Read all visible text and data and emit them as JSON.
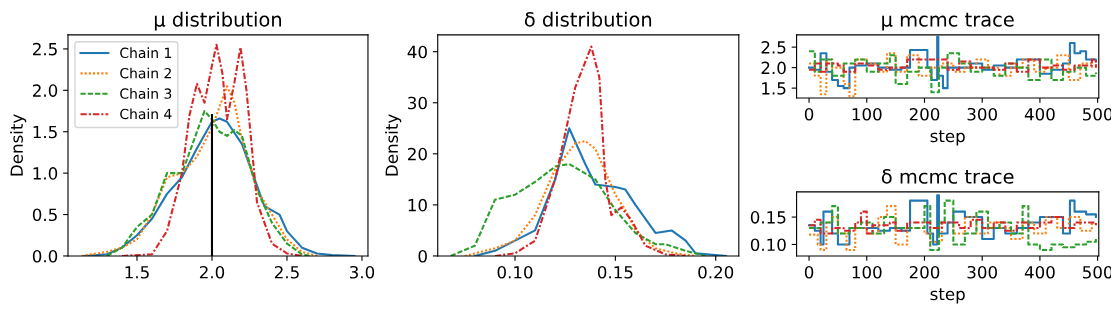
{
  "chart_data": [
    {
      "type": "line",
      "title": "μ distribution",
      "ylabel": "Density",
      "legend": "top left",
      "xlim": [
        1.04,
        3.04
      ],
      "ylim": [
        0,
        2.67
      ],
      "xticks": [
        1.5,
        {
          "value": 2,
          "label": "2.0"
        },
        2.5,
        {
          "value": 3,
          "label": "3.0"
        }
      ],
      "yticks": [
        {
          "value": 0,
          "label": "0.0"
        },
        0.5,
        {
          "value": 1,
          "label": "1.0"
        },
        1.5,
        {
          "value": 2,
          "label": "2.0"
        },
        2.5
      ],
      "series": [
        {
          "name": "Chain 1",
          "color": "#1f77b4",
          "line_style": "solid",
          "x": [
            1.15,
            1.3,
            1.4,
            1.5,
            1.6,
            1.7,
            1.8,
            1.9,
            2.0,
            2.05,
            2.1,
            2.2,
            2.3,
            2.35,
            2.4,
            2.45,
            2.5,
            2.6,
            2.7,
            2.8,
            2.95
          ],
          "values": [
            0,
            0.02,
            0.1,
            0.25,
            0.45,
            0.75,
            0.95,
            1.3,
            1.62,
            1.66,
            1.62,
            1.35,
            0.85,
            0.6,
            0.55,
            0.5,
            0.3,
            0.1,
            0.03,
            0.01,
            0
          ]
        },
        {
          "name": "Chain 2",
          "color": "#ff7f0e",
          "line_style": "dotted",
          "x": [
            1.13,
            1.3,
            1.4,
            1.5,
            1.6,
            1.7,
            1.8,
            1.9,
            2.0,
            2.05,
            2.1,
            2.15,
            2.2,
            2.3,
            2.4,
            2.5,
            2.6,
            2.7
          ],
          "values": [
            0,
            0.05,
            0.1,
            0.2,
            0.5,
            0.95,
            1.0,
            1.2,
            1.55,
            1.8,
            2.05,
            1.85,
            1.4,
            0.8,
            0.5,
            0.2,
            0.05,
            0
          ]
        },
        {
          "name": "Chain 3",
          "color": "#2ca02c",
          "line_style": "dashed",
          "x": [
            1.3,
            1.4,
            1.5,
            1.6,
            1.7,
            1.75,
            1.8,
            1.9,
            1.95,
            2.0,
            2.05,
            2.1,
            2.15,
            2.2,
            2.3,
            2.4,
            2.5,
            2.6,
            2.65
          ],
          "values": [
            0,
            0.1,
            0.35,
            0.5,
            1.0,
            1.0,
            1.0,
            1.5,
            1.75,
            1.65,
            1.5,
            1.45,
            1.52,
            1.45,
            0.8,
            0.4,
            0.15,
            0.02,
            0
          ]
        },
        {
          "name": "Chain 4",
          "color": "#d62728",
          "line_style": "dashdot",
          "x": [
            1.4,
            1.6,
            1.7,
            1.8,
            1.85,
            1.9,
            1.95,
            2.0,
            2.03,
            2.07,
            2.1,
            2.15,
            2.19,
            2.23,
            2.3,
            2.4,
            2.5,
            2.6
          ],
          "values": [
            0,
            0.02,
            0.3,
            1.0,
            1.7,
            2.08,
            1.85,
            2.3,
            2.55,
            2.2,
            1.65,
            2.1,
            2.52,
            2.0,
            0.65,
            0.15,
            0.03,
            0
          ]
        },
        {
          "color": "#000000",
          "line_style": "solid",
          "x": [
            2.0,
            2.0
          ],
          "values": [
            0,
            1.7
          ]
        }
      ]
    },
    {
      "type": "line",
      "title": "δ distribution",
      "ylabel": "Density",
      "xlim": [
        0.0615,
        0.2115
      ],
      "ylim": [
        0,
        43.3
      ],
      "xticks": [
        {
          "value": 0.1,
          "label": "0.10"
        },
        {
          "value": 0.15,
          "label": "0.15"
        },
        {
          "value": 0.2,
          "label": "0.20"
        }
      ],
      "yticks": [
        0,
        10,
        20,
        30,
        40
      ],
      "series": [
        {
          "color": "#1f77b4",
          "line_style": "solid",
          "x": [
            0.08,
            0.09,
            0.1,
            0.11,
            0.12,
            0.127,
            0.135,
            0.14,
            0.15,
            0.155,
            0.16,
            0.17,
            0.178,
            0.185,
            0.19,
            0.205
          ],
          "values": [
            0,
            1,
            3,
            5,
            15,
            25,
            18,
            14,
            13.5,
            13,
            10,
            4.5,
            5,
            3,
            0.5,
            0
          ]
        },
        {
          "color": "#ff7f0e",
          "line_style": "dotted",
          "x": [
            0.075,
            0.09,
            0.1,
            0.11,
            0.12,
            0.13,
            0.135,
            0.14,
            0.15,
            0.155,
            0.16,
            0.17,
            0.18,
            0.19
          ],
          "values": [
            0,
            1.5,
            3,
            8,
            17,
            22,
            22.5,
            21,
            12,
            9,
            5,
            1.5,
            0.5,
            0
          ]
        },
        {
          "color": "#2ca02c",
          "line_style": "dashed",
          "x": [
            0.068,
            0.08,
            0.09,
            0.1,
            0.11,
            0.12,
            0.127,
            0.14,
            0.15,
            0.16,
            0.17,
            0.175,
            0.185,
            0.195
          ],
          "values": [
            0,
            2,
            11,
            12,
            14.5,
            17.5,
            18,
            15,
            9,
            4.5,
            2.3,
            2.3,
            1,
            0
          ]
        },
        {
          "color": "#d62728",
          "line_style": "dashdot",
          "x": [
            0.09,
            0.1,
            0.11,
            0.12,
            0.13,
            0.138,
            0.142,
            0.145,
            0.148,
            0.153,
            0.158,
            0.165,
            0.175,
            0.185
          ],
          "values": [
            0,
            0.5,
            3,
            15,
            33,
            41,
            35,
            15,
            8,
            9.5,
            7,
            2,
            0.3,
            0
          ]
        }
      ]
    },
    {
      "type": "step",
      "title": "μ mcmc trace",
      "xlabel": "step",
      "xlim": [
        -21.6,
        502
      ],
      "ylim": [
        1.26,
        2.8
      ],
      "xticks": [
        0,
        100,
        200,
        300,
        400,
        500
      ],
      "yticks": [
        1.5,
        {
          "value": 2,
          "label": "2.0"
        },
        2.5
      ],
      "series": [
        {
          "color": "#1f77b4",
          "line_style": "solid",
          "x": [
            0,
            10,
            20,
            30,
            40,
            50,
            60,
            70,
            80,
            100,
            120,
            140,
            160,
            175,
            185,
            205,
            212,
            222,
            224,
            232,
            240,
            260,
            280,
            300,
            320,
            340,
            360,
            380,
            400,
            420,
            440,
            452,
            460,
            470,
            480,
            497
          ],
          "values": [
            2.0,
            1.95,
            2.35,
            1.9,
            1.7,
            1.55,
            1.5,
            2.0,
            2.05,
            2.1,
            2.0,
            1.95,
            2.0,
            2.43,
            2.43,
            2.0,
            1.7,
            2.75,
            1.8,
            1.5,
            2.0,
            2.0,
            2.1,
            1.95,
            2.05,
            2.0,
            2.2,
            2.2,
            1.85,
            1.95,
            2.1,
            2.6,
            2.35,
            2.4,
            2.2,
            2.15
          ]
        },
        {
          "color": "#ff7f0e",
          "line_style": "dotted",
          "x": [
            0,
            10,
            20,
            30,
            40,
            60,
            70,
            80,
            100,
            120,
            135,
            150,
            170,
            190,
            210,
            230,
            250,
            270,
            290,
            310,
            330,
            350,
            370,
            390,
            410,
            430,
            450,
            470,
            490
          ],
          "values": [
            2.1,
            1.8,
            1.35,
            2.2,
            2.0,
            1.6,
            1.3,
            2.2,
            2.1,
            1.9,
            2.35,
            1.9,
            2.3,
            1.8,
            2.0,
            2.1,
            1.9,
            2.0,
            2.2,
            2.0,
            1.8,
            2.0,
            2.2,
            1.9,
            2.0,
            2.3,
            1.7,
            2.1,
            2.0
          ]
        },
        {
          "color": "#2ca02c",
          "line_style": "dashed",
          "x": [
            0,
            10,
            20,
            40,
            60,
            80,
            100,
            120,
            140,
            150,
            170,
            190,
            210,
            212,
            225,
            240,
            260,
            280,
            300,
            320,
            340,
            360,
            380,
            400,
            420,
            440,
            460,
            480,
            497
          ],
          "values": [
            2.4,
            1.9,
            2.2,
            1.8,
            2.1,
            2.2,
            1.9,
            2.1,
            2.3,
            1.6,
            1.9,
            2.0,
            1.9,
            1.4,
            2.0,
            2.35,
            2.1,
            1.9,
            2.0,
            1.8,
            2.1,
            2.0,
            1.7,
            2.2,
            1.7,
            1.9,
            2.0,
            1.8,
            1.88
          ]
        },
        {
          "color": "#d62728",
          "line_style": "dashdot",
          "x": [
            0,
            10,
            20,
            30,
            50,
            60,
            80,
            100,
            120,
            140,
            160,
            170,
            230,
            240,
            260,
            280,
            300,
            320,
            340,
            360,
            380,
            400,
            420,
            440,
            460,
            480,
            490,
            497
          ],
          "values": [
            1.95,
            2.1,
            1.9,
            2.1,
            2.05,
            1.9,
            2.1,
            2.05,
            1.95,
            2.0,
            2.0,
            2.2,
            2.2,
            1.95,
            2.15,
            2.0,
            2.0,
            1.95,
            2.1,
            1.9,
            2.2,
            2.0,
            2.05,
            1.95,
            2.05,
            2.05,
            2.2,
            2.0
          ]
        }
      ]
    },
    {
      "type": "step",
      "title": "δ mcmc trace",
      "xlabel": "step",
      "xlim": [
        -21.6,
        502
      ],
      "ylim": [
        0.079,
        0.196
      ],
      "xticks": [
        0,
        100,
        200,
        300,
        400,
        500
      ],
      "yticks": [
        {
          "value": 0.1,
          "label": "0.10"
        },
        {
          "value": 0.15,
          "label": "0.15"
        }
      ],
      "series": [
        {
          "color": "#1f77b4",
          "line_style": "solid",
          "x": [
            0,
            10,
            20,
            25,
            40,
            50,
            60,
            70,
            100,
            120,
            140,
            160,
            175,
            200,
            205,
            215,
            222,
            225,
            240,
            250,
            270,
            300,
            320,
            340,
            360,
            380,
            400,
            420,
            440,
            452,
            460,
            480,
            497
          ],
          "values": [
            0.135,
            0.125,
            0.1,
            0.16,
            0.12,
            0.1,
            0.1,
            0.13,
            0.13,
            0.125,
            0.13,
            0.125,
            0.18,
            0.18,
            0.12,
            0.1,
            0.19,
            0.12,
            0.14,
            0.16,
            0.15,
            0.11,
            0.13,
            0.12,
            0.13,
            0.14,
            0.15,
            0.15,
            0.12,
            0.18,
            0.16,
            0.155,
            0.15
          ]
        },
        {
          "color": "#ff7f0e",
          "line_style": "dotted",
          "x": [
            0,
            15,
            20,
            30,
            40,
            50,
            65,
            80,
            100,
            120,
            135,
            150,
            170,
            200,
            210,
            230,
            250,
            270,
            290,
            310,
            330,
            350,
            370,
            390,
            410,
            430,
            450,
            470,
            490
          ],
          "values": [
            0.118,
            0.1,
            0.09,
            0.14,
            0.15,
            0.12,
            0.09,
            0.13,
            0.12,
            0.15,
            0.17,
            0.1,
            0.13,
            0.12,
            0.105,
            0.14,
            0.12,
            0.15,
            0.12,
            0.14,
            0.13,
            0.11,
            0.14,
            0.12,
            0.15,
            0.13,
            0.15,
            0.125,
            0.14
          ]
        },
        {
          "color": "#2ca02c",
          "line_style": "dashed",
          "x": [
            0,
            20,
            40,
            50,
            70,
            90,
            110,
            130,
            150,
            180,
            200,
            210,
            225,
            235,
            250,
            270,
            290,
            310,
            330,
            350,
            370,
            380,
            400,
            420,
            440,
            460,
            480,
            497
          ],
          "values": [
            0.13,
            0.14,
            0.17,
            0.12,
            0.13,
            0.14,
            0.12,
            0.15,
            0.13,
            0.13,
            0.17,
            0.09,
            0.14,
            0.18,
            0.1,
            0.12,
            0.16,
            0.13,
            0.14,
            0.12,
            0.17,
            0.1,
            0.09,
            0.1,
            0.095,
            0.1,
            0.105,
            0.11
          ]
        },
        {
          "color": "#d62728",
          "line_style": "dashdot",
          "x": [
            0,
            10,
            20,
            40,
            60,
            80,
            90,
            100,
            110,
            140,
            150,
            170,
            200,
            210,
            230,
            260,
            280,
            300,
            320,
            340,
            360,
            380,
            400,
            420,
            440,
            460,
            480,
            497
          ],
          "values": [
            0.135,
            0.145,
            0.12,
            0.13,
            0.125,
            0.14,
            0.16,
            0.12,
            0.135,
            0.14,
            0.125,
            0.14,
            0.14,
            0.13,
            0.14,
            0.13,
            0.145,
            0.13,
            0.14,
            0.125,
            0.14,
            0.13,
            0.14,
            0.15,
            0.13,
            0.14,
            0.14,
            0.135
          ]
        }
      ]
    }
  ]
}
